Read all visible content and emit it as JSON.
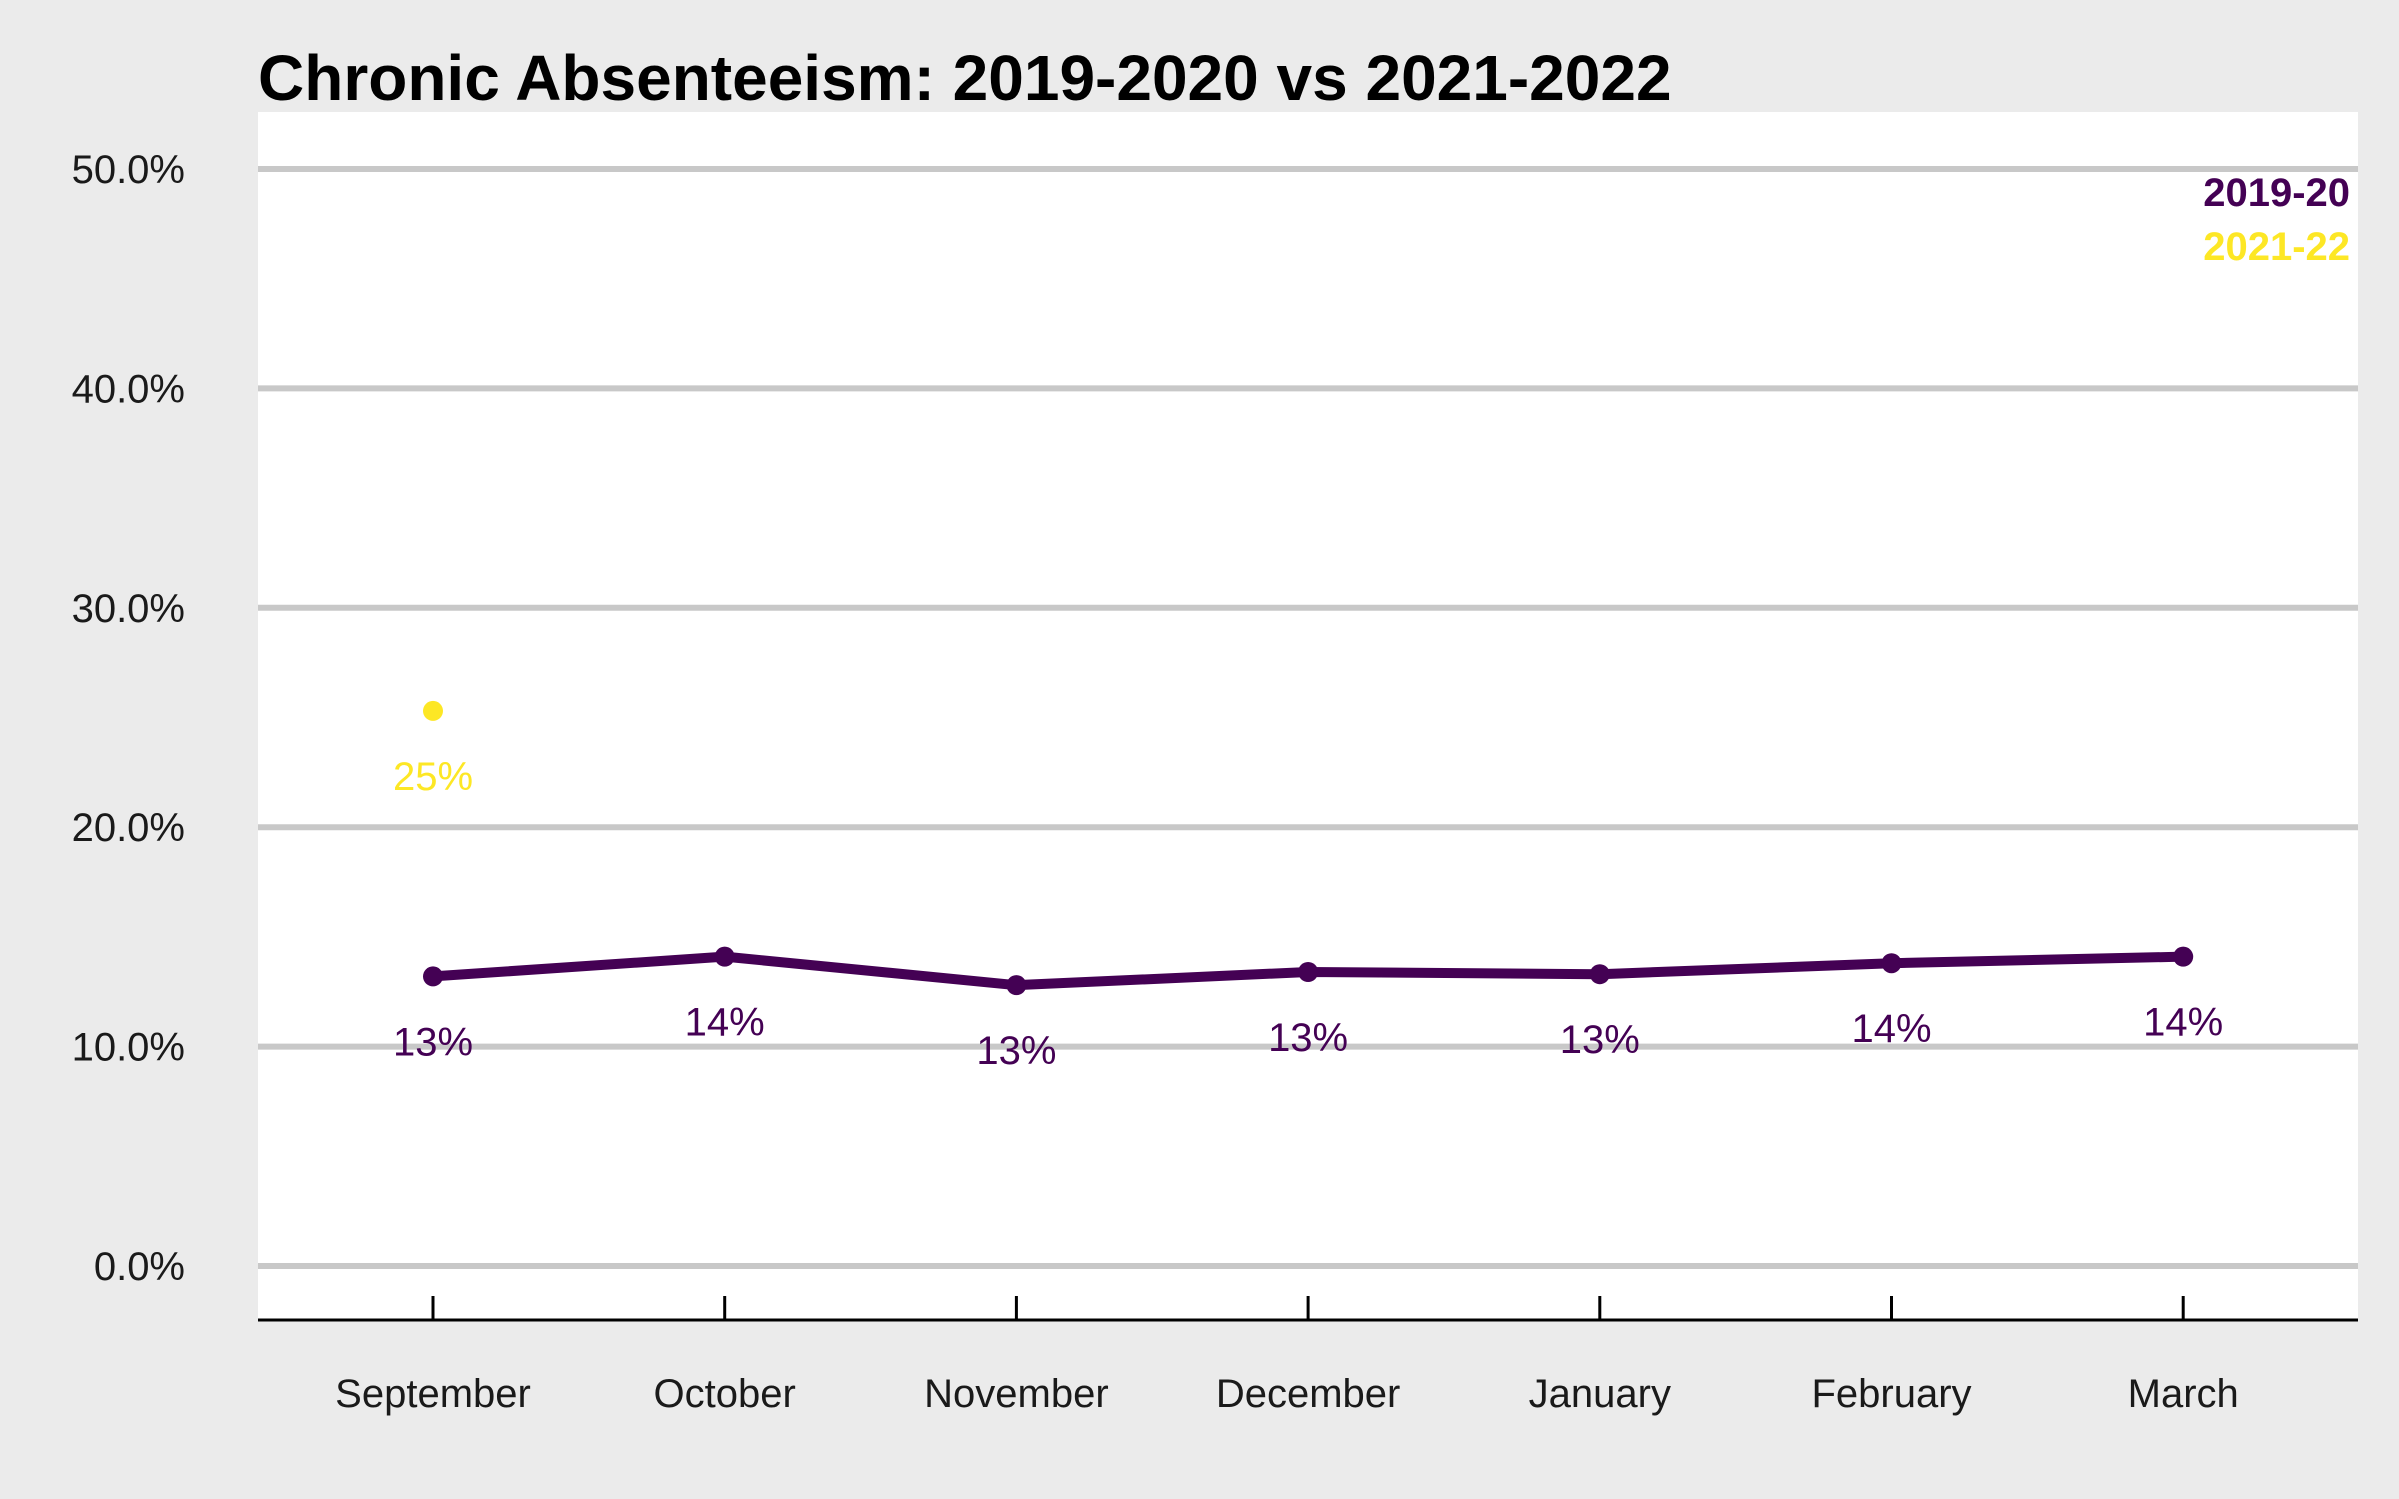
{
  "chart_data": {
    "type": "line",
    "title": "Chronic Absenteeism: 2019-2020 vs 2021-2022",
    "xlabel": "",
    "ylabel": "",
    "categories": [
      "September",
      "October",
      "November",
      "December",
      "January",
      "February",
      "March"
    ],
    "ylim": [
      0,
      50
    ],
    "yticks": [
      0,
      10,
      20,
      30,
      40,
      50
    ],
    "ytick_labels": [
      "0.0%",
      "10.0%",
      "20.0%",
      "30.0%",
      "40.0%",
      "50.0%"
    ],
    "grid": "horizontal",
    "legend": "top-right",
    "series": [
      {
        "name": "2019-20",
        "color": "#440154",
        "values": [
          13.2,
          14.1,
          12.8,
          13.4,
          13.3,
          13.8,
          14.1
        ],
        "labels": [
          "13%",
          "14%",
          "13%",
          "13%",
          "13%",
          "14%",
          "14%"
        ]
      },
      {
        "name": "2021-22",
        "color": "#fde725",
        "values": [
          25.3,
          null,
          null,
          null,
          null,
          null,
          null
        ],
        "labels": [
          "25%",
          null,
          null,
          null,
          null,
          null,
          null
        ]
      }
    ]
  }
}
